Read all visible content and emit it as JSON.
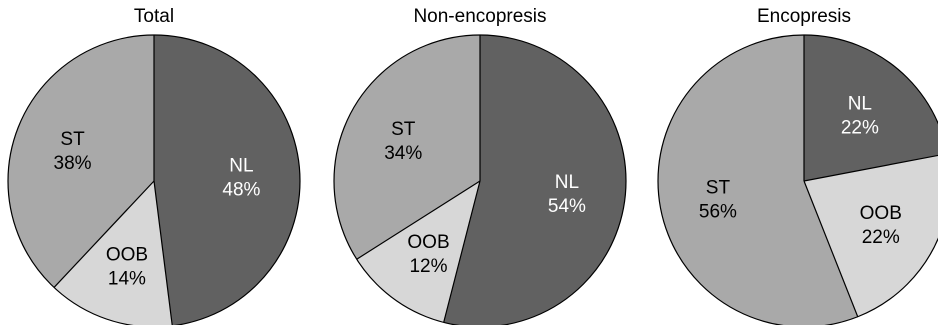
{
  "chart_data": [
    {
      "type": "pie",
      "title": "Total",
      "slices": [
        {
          "label": "NL",
          "value": 48,
          "color": "#616161",
          "text_color": "#ffffff"
        },
        {
          "label": "OOB",
          "value": 14,
          "color": "#d7d7d7",
          "text_color": "#000000"
        },
        {
          "label": "ST",
          "value": 38,
          "color": "#a9a9a9",
          "text_color": "#000000"
        }
      ]
    },
    {
      "type": "pie",
      "title": "Non-encopresis",
      "slices": [
        {
          "label": "NL",
          "value": 54,
          "color": "#616161",
          "text_color": "#ffffff"
        },
        {
          "label": "OOB",
          "value": 12,
          "color": "#d7d7d7",
          "text_color": "#000000"
        },
        {
          "label": "ST",
          "value": 34,
          "color": "#a9a9a9",
          "text_color": "#000000"
        }
      ]
    },
    {
      "type": "pie",
      "title": "Encopresis",
      "slices": [
        {
          "label": "NL",
          "value": 22,
          "color": "#616161",
          "text_color": "#ffffff"
        },
        {
          "label": "OOB",
          "value": 22,
          "color": "#d7d7d7",
          "text_color": "#000000"
        },
        {
          "label": "ST",
          "value": 56,
          "color": "#a9a9a9",
          "text_color": "#000000"
        }
      ]
    }
  ]
}
